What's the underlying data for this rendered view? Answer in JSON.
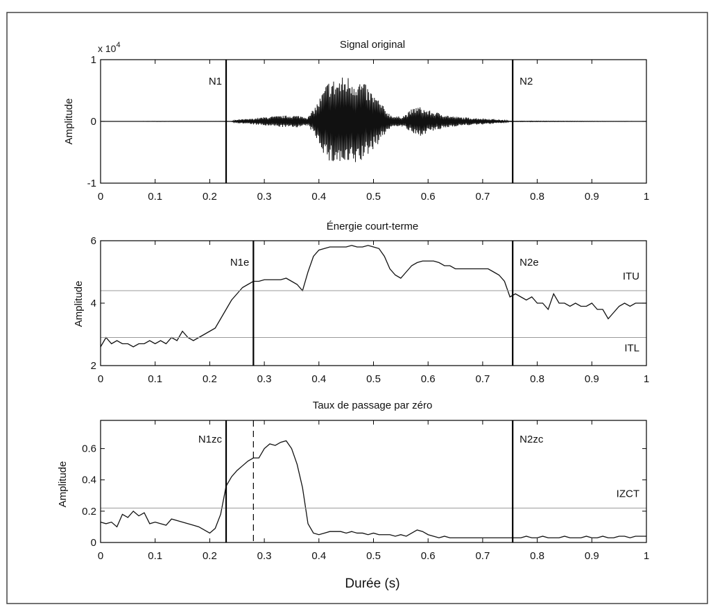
{
  "figure": {
    "xlabel": "Durée (s)",
    "frame_color": "#000000",
    "threshold_color": "#9a9a9a"
  },
  "chart_data": [
    {
      "type": "line",
      "title": "Signal original",
      "ylabel": "Amplitude",
      "y_multiplier": "x 10",
      "y_multiplier_exp": "4",
      "xlim": [
        0,
        1
      ],
      "ylim": [
        -1,
        1
      ],
      "xticks": [
        0,
        0.1,
        0.2,
        0.3,
        0.4,
        0.5,
        0.6,
        0.7,
        0.8,
        0.9,
        1
      ],
      "xtick_labels": [
        "0",
        "0.1",
        "0.2",
        "0.3",
        "0.4",
        "0.5",
        "0.6",
        "0.7",
        "0.8",
        "0.9",
        "1"
      ],
      "yticks": [
        -1,
        0,
        1
      ],
      "ytick_labels": [
        "-1",
        "0",
        "1"
      ],
      "envelope": {
        "x": [
          0,
          0.24,
          0.25,
          0.27,
          0.29,
          0.31,
          0.33,
          0.35,
          0.37,
          0.38,
          0.39,
          0.4,
          0.41,
          0.42,
          0.43,
          0.44,
          0.45,
          0.46,
          0.47,
          0.48,
          0.49,
          0.5,
          0.51,
          0.52,
          0.53,
          0.54,
          0.55,
          0.56,
          0.57,
          0.58,
          0.59,
          0.6,
          0.61,
          0.62,
          0.63,
          0.64,
          0.66,
          0.68,
          0.7,
          0.72,
          0.74,
          0.75,
          0.8,
          1
        ],
        "amp": [
          0,
          0.002,
          0.03,
          0.04,
          0.06,
          0.08,
          0.09,
          0.1,
          0.09,
          0.07,
          0.2,
          0.35,
          0.55,
          0.7,
          0.68,
          0.72,
          0.75,
          0.73,
          0.7,
          0.65,
          0.55,
          0.45,
          0.35,
          0.22,
          0.12,
          0.08,
          0.08,
          0.12,
          0.2,
          0.25,
          0.22,
          0.18,
          0.16,
          0.14,
          0.12,
          0.09,
          0.07,
          0.06,
          0.05,
          0.04,
          0.02,
          0.005,
          0.005,
          0
        ]
      },
      "markers": [
        {
          "x": 0.23,
          "label": "N1",
          "style": "solid"
        },
        {
          "x": 0.755,
          "label": "N2",
          "style": "solid"
        }
      ]
    },
    {
      "type": "line",
      "title": "Énergie court-terme",
      "ylabel": "Amplitude",
      "xlim": [
        0,
        1
      ],
      "ylim": [
        2,
        6
      ],
      "xticks": [
        0,
        0.1,
        0.2,
        0.3,
        0.4,
        0.5,
        0.6,
        0.7,
        0.8,
        0.9,
        1
      ],
      "xtick_labels": [
        "0",
        "0.1",
        "0.2",
        "0.3",
        "0.4",
        "0.5",
        "0.6",
        "0.7",
        "0.8",
        "0.9",
        "1"
      ],
      "yticks": [
        2,
        4,
        6
      ],
      "ytick_labels": [
        "2",
        "4",
        "6"
      ],
      "x": [
        0,
        0.01,
        0.02,
        0.03,
        0.04,
        0.05,
        0.06,
        0.07,
        0.08,
        0.09,
        0.1,
        0.11,
        0.12,
        0.13,
        0.14,
        0.15,
        0.16,
        0.17,
        0.18,
        0.19,
        0.2,
        0.21,
        0.22,
        0.23,
        0.24,
        0.25,
        0.26,
        0.27,
        0.28,
        0.29,
        0.3,
        0.31,
        0.32,
        0.33,
        0.34,
        0.35,
        0.36,
        0.37,
        0.38,
        0.39,
        0.4,
        0.41,
        0.42,
        0.43,
        0.44,
        0.45,
        0.46,
        0.47,
        0.48,
        0.49,
        0.5,
        0.51,
        0.52,
        0.53,
        0.54,
        0.55,
        0.56,
        0.57,
        0.58,
        0.59,
        0.6,
        0.61,
        0.62,
        0.63,
        0.64,
        0.65,
        0.66,
        0.67,
        0.68,
        0.69,
        0.7,
        0.71,
        0.72,
        0.73,
        0.74,
        0.75,
        0.76,
        0.77,
        0.78,
        0.79,
        0.8,
        0.81,
        0.82,
        0.83,
        0.84,
        0.85,
        0.86,
        0.87,
        0.88,
        0.89,
        0.9,
        0.91,
        0.92,
        0.93,
        0.94,
        0.95,
        0.96,
        0.97,
        0.98,
        0.99,
        1.0
      ],
      "y": [
        2.6,
        2.9,
        2.7,
        2.8,
        2.7,
        2.7,
        2.6,
        2.7,
        2.7,
        2.8,
        2.7,
        2.8,
        2.7,
        2.9,
        2.8,
        3.1,
        2.9,
        2.8,
        2.9,
        3.0,
        3.1,
        3.2,
        3.5,
        3.8,
        4.1,
        4.3,
        4.5,
        4.6,
        4.7,
        4.7,
        4.75,
        4.75,
        4.75,
        4.75,
        4.8,
        4.7,
        4.6,
        4.4,
        5.0,
        5.5,
        5.7,
        5.75,
        5.8,
        5.8,
        5.8,
        5.8,
        5.85,
        5.8,
        5.8,
        5.85,
        5.8,
        5.75,
        5.5,
        5.1,
        4.9,
        4.8,
        5.0,
        5.2,
        5.3,
        5.35,
        5.35,
        5.35,
        5.3,
        5.2,
        5.2,
        5.1,
        5.1,
        5.1,
        5.1,
        5.1,
        5.1,
        5.1,
        5.0,
        4.9,
        4.7,
        4.2,
        4.3,
        4.2,
        4.1,
        4.2,
        4.0,
        4.0,
        3.8,
        4.3,
        4.0,
        4.0,
        3.9,
        4.0,
        3.9,
        3.9,
        4.0,
        3.8,
        3.8,
        3.5,
        3.7,
        3.9,
        4.0,
        3.9,
        4.0,
        4.0,
        4.0
      ],
      "thresholds": [
        {
          "y": 4.4,
          "label": "ITU"
        },
        {
          "y": 2.9,
          "label": "ITL"
        }
      ],
      "markers": [
        {
          "x": 0.28,
          "label": "N1e",
          "style": "solid"
        },
        {
          "x": 0.755,
          "label": "N2e",
          "style": "solid"
        }
      ]
    },
    {
      "type": "line",
      "title": "Taux de passage par zéro",
      "ylabel": "Amplitude",
      "xlim": [
        0,
        1
      ],
      "ylim": [
        0,
        0.78
      ],
      "xticks": [
        0,
        0.1,
        0.2,
        0.3,
        0.4,
        0.5,
        0.6,
        0.7,
        0.8,
        0.9,
        1
      ],
      "xtick_labels": [
        "0",
        "0.1",
        "0.2",
        "0.3",
        "0.4",
        "0.5",
        "0.6",
        "0.7",
        "0.8",
        "0.9",
        "1"
      ],
      "yticks": [
        0,
        0.2,
        0.4,
        0.6
      ],
      "ytick_labels": [
        "0",
        "0.2",
        "0.4",
        "0.6"
      ],
      "x": [
        0,
        0.01,
        0.02,
        0.03,
        0.04,
        0.05,
        0.06,
        0.07,
        0.08,
        0.09,
        0.1,
        0.11,
        0.12,
        0.13,
        0.14,
        0.15,
        0.16,
        0.17,
        0.18,
        0.19,
        0.2,
        0.21,
        0.22,
        0.23,
        0.24,
        0.25,
        0.26,
        0.27,
        0.28,
        0.29,
        0.3,
        0.31,
        0.32,
        0.33,
        0.34,
        0.35,
        0.36,
        0.37,
        0.38,
        0.39,
        0.4,
        0.41,
        0.42,
        0.43,
        0.44,
        0.45,
        0.46,
        0.47,
        0.48,
        0.49,
        0.5,
        0.51,
        0.52,
        0.53,
        0.54,
        0.55,
        0.56,
        0.57,
        0.58,
        0.59,
        0.6,
        0.61,
        0.62,
        0.63,
        0.64,
        0.65,
        0.66,
        0.67,
        0.68,
        0.69,
        0.7,
        0.71,
        0.72,
        0.73,
        0.74,
        0.75,
        0.76,
        0.77,
        0.78,
        0.79,
        0.8,
        0.81,
        0.82,
        0.83,
        0.84,
        0.85,
        0.86,
        0.87,
        0.88,
        0.89,
        0.9,
        0.91,
        0.92,
        0.93,
        0.94,
        0.95,
        0.96,
        0.97,
        0.98,
        0.99,
        1.0
      ],
      "y": [
        0.13,
        0.12,
        0.13,
        0.1,
        0.18,
        0.16,
        0.2,
        0.17,
        0.19,
        0.12,
        0.13,
        0.12,
        0.11,
        0.15,
        0.14,
        0.13,
        0.12,
        0.11,
        0.1,
        0.08,
        0.06,
        0.09,
        0.18,
        0.36,
        0.42,
        0.46,
        0.49,
        0.52,
        0.54,
        0.54,
        0.6,
        0.63,
        0.62,
        0.64,
        0.65,
        0.6,
        0.5,
        0.35,
        0.12,
        0.06,
        0.05,
        0.06,
        0.07,
        0.07,
        0.07,
        0.06,
        0.07,
        0.06,
        0.06,
        0.05,
        0.06,
        0.05,
        0.05,
        0.05,
        0.04,
        0.05,
        0.04,
        0.06,
        0.08,
        0.07,
        0.05,
        0.04,
        0.03,
        0.04,
        0.03,
        0.03,
        0.03,
        0.03,
        0.03,
        0.03,
        0.03,
        0.03,
        0.03,
        0.03,
        0.03,
        0.03,
        0.03,
        0.03,
        0.04,
        0.03,
        0.03,
        0.04,
        0.03,
        0.03,
        0.03,
        0.04,
        0.03,
        0.03,
        0.03,
        0.04,
        0.03,
        0.03,
        0.04,
        0.03,
        0.03,
        0.04,
        0.04,
        0.03,
        0.04,
        0.04,
        0.04
      ],
      "thresholds": [
        {
          "y": 0.22,
          "label": "IZCT"
        }
      ],
      "markers": [
        {
          "x": 0.23,
          "label": "N1zc",
          "style": "solid"
        },
        {
          "x": 0.28,
          "label": "",
          "style": "dashed"
        },
        {
          "x": 0.755,
          "label": "N2zc",
          "style": "solid"
        }
      ]
    }
  ]
}
